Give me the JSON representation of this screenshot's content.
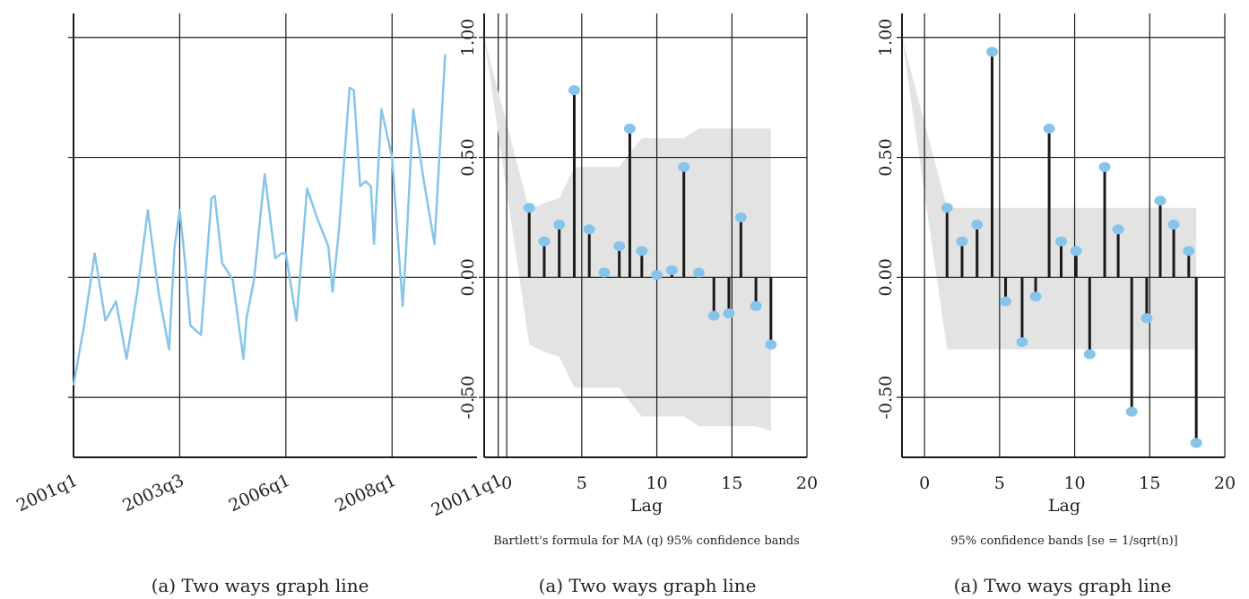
{
  "colors": {
    "series": "#86c5e9",
    "band": "#e3e3e4",
    "axis": "#1a1a1a",
    "spike": "#1a1a1a",
    "marker": "#86c5e9"
  },
  "chart_data": [
    {
      "type": "line",
      "caption": "(a) Two ways graph line",
      "x_tick_labels": [
        "2001q1",
        "2003q3",
        "2006q1",
        "2008q1",
        "20011q1"
      ],
      "xlim": [
        0,
        38
      ],
      "x_ticks": [
        0,
        10,
        20,
        30,
        40
      ],
      "ylim": [
        -0.75,
        1.1
      ],
      "y_ticks": [
        -0.5,
        0,
        0.5,
        1
      ],
      "show_y_tick_labels": false,
      "grid": true,
      "series": [
        {
          "x": [
            0,
            1,
            2,
            3,
            4,
            5,
            6,
            7,
            8,
            9,
            9.5,
            10,
            10.5,
            11,
            12,
            13,
            13.3,
            14,
            15,
            16,
            16.3,
            17,
            18,
            19,
            19.6,
            20,
            21,
            22,
            23,
            24,
            24.4,
            25,
            26,
            26.4,
            27,
            27.5,
            28,
            28.3,
            29,
            30,
            31,
            31.3,
            32,
            33,
            34,
            35
          ],
          "y": [
            -0.45,
            -0.2,
            0.1,
            -0.18,
            -0.1,
            -0.34,
            -0.06,
            0.28,
            -0.06,
            -0.3,
            0.12,
            0.28,
            0.07,
            -0.2,
            -0.24,
            0.33,
            0.34,
            0.06,
            -0.01,
            -0.34,
            -0.17,
            -0.01,
            0.43,
            0.08,
            0.1,
            0.1,
            -0.18,
            0.37,
            0.24,
            0.13,
            -0.06,
            0.2,
            0.79,
            0.78,
            0.38,
            0.4,
            0.38,
            0.14,
            0.7,
            0.5,
            -0.12,
            0.1,
            0.7,
            0.4,
            0.14,
            0.93
          ]
        }
      ]
    },
    {
      "type": "bar",
      "caption": "(a) Two ways graph line",
      "xlabel": "Lag",
      "note": "Bartlett's formula for MA (q) 95% confidence bands",
      "xlim": [
        -1.5,
        20
      ],
      "x_ticks": [
        0,
        5,
        10,
        15,
        20
      ],
      "ylim": [
        -0.75,
        1.1
      ],
      "y_ticks": [
        -0.5,
        0,
        0.5,
        1
      ],
      "y_tick_labels": [
        "-0.50",
        "0.00",
        "0.50",
        "1.00"
      ],
      "grid": true,
      "series": [
        {
          "name": "",
          "lags": [
            1.5,
            2.5,
            3.5,
            4.5,
            5.5,
            6.5,
            7.5,
            8.2,
            9.0,
            10.0,
            11.0,
            11.8,
            12.8,
            13.8,
            14.8,
            15.6,
            16.6,
            17.6
          ],
          "values": [
            0.29,
            0.15,
            0.22,
            0.78,
            0.2,
            0.02,
            0.13,
            0.62,
            0.11,
            0.01,
            0.03,
            0.46,
            0.02,
            -0.16,
            -0.15,
            0.25,
            -0.12,
            -0.28
          ]
        }
      ],
      "confidence_band": {
        "x": [
          -1.5,
          1.5,
          2.5,
          3.5,
          4.5,
          5.5,
          6.5,
          7.5,
          8.2,
          9.0,
          10.0,
          11.0,
          11.8,
          12.8,
          13.8,
          14.8,
          15.6,
          16.6,
          17.6
        ],
        "upper": [
          1.0,
          0.28,
          0.31,
          0.33,
          0.46,
          0.46,
          0.46,
          0.46,
          0.52,
          0.58,
          0.58,
          0.58,
          0.58,
          0.62,
          0.62,
          0.62,
          0.62,
          0.62,
          0.62
        ],
        "lower": [
          1.0,
          -0.28,
          -0.31,
          -0.33,
          -0.46,
          -0.46,
          -0.46,
          -0.46,
          -0.52,
          -0.58,
          -0.58,
          -0.58,
          -0.58,
          -0.62,
          -0.62,
          -0.62,
          -0.62,
          -0.62,
          -0.64
        ]
      }
    },
    {
      "type": "bar",
      "caption": "(a) Two ways graph line",
      "xlabel": "Lag",
      "note": "95% confidence bands [se = 1/sqrt(n)]",
      "xlim": [
        -1.5,
        20
      ],
      "x_ticks": [
        0,
        5,
        10,
        15,
        20
      ],
      "ylim": [
        -0.75,
        1.1
      ],
      "y_ticks": [
        -0.5,
        0,
        0.5,
        1
      ],
      "y_tick_labels": [
        "-0.50",
        "0.00",
        "0.50",
        "1.00"
      ],
      "grid": true,
      "series": [
        {
          "name": "",
          "lags": [
            1.5,
            2.5,
            3.5,
            4.5,
            5.4,
            6.5,
            7.4,
            8.3,
            9.1,
            10.1,
            11.0,
            12.0,
            12.9,
            13.8,
            14.8,
            15.7,
            16.6,
            17.6,
            18.1
          ],
          "values": [
            0.29,
            0.15,
            0.22,
            0.94,
            -0.1,
            -0.27,
            -0.08,
            0.62,
            0.15,
            0.11,
            -0.32,
            0.46,
            0.2,
            -0.56,
            -0.17,
            0.32,
            0.22,
            0.11,
            -0.69
          ]
        }
      ],
      "confidence_band": {
        "x": [
          -1.5,
          1.5,
          18.1
        ],
        "upper": [
          1.0,
          0.29,
          0.29
        ],
        "lower": [
          1.0,
          -0.3,
          -0.3
        ]
      }
    }
  ]
}
